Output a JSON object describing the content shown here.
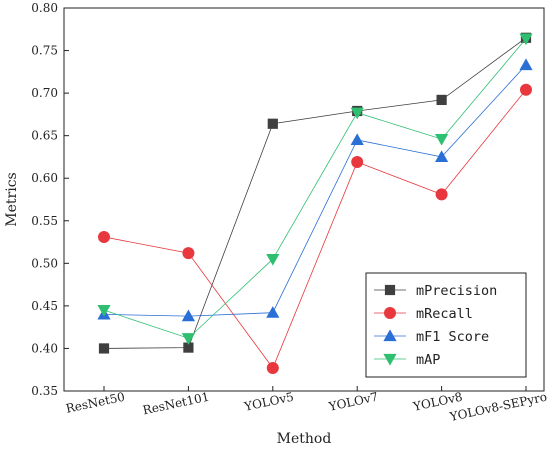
{
  "chart_data": {
    "type": "line",
    "xlabel": "Method",
    "ylabel": "Metrics",
    "categories": [
      "ResNet50",
      "ResNet101",
      "YOLOv5",
      "YOLOv7",
      "YOLOv8",
      "YOLOv8-SEPyro"
    ],
    "ylim": [
      0.35,
      0.8
    ],
    "yticks": [
      "0.35",
      "0.40",
      "0.45",
      "0.50",
      "0.55",
      "0.60",
      "0.65",
      "0.70",
      "0.75",
      "0.80"
    ],
    "grid": false,
    "legend_position": "bottom-right",
    "series": [
      {
        "name": "mPrecision",
        "marker": "square",
        "color": "#3f3f3f",
        "values": [
          0.4,
          0.401,
          0.664,
          0.679,
          0.692,
          0.765
        ]
      },
      {
        "name": "mRecall",
        "marker": "circle",
        "color": "#e8383d",
        "values": [
          0.531,
          0.512,
          0.377,
          0.619,
          0.581,
          0.704
        ]
      },
      {
        "name": "mF1 Score",
        "marker": "triangle-up",
        "color": "#2a6fd6",
        "values": [
          0.44,
          0.438,
          0.442,
          0.645,
          0.625,
          0.733
        ]
      },
      {
        "name": "mAP",
        "marker": "triangle-down",
        "color": "#2fbf71",
        "values": [
          0.445,
          0.412,
          0.505,
          0.677,
          0.646,
          0.764
        ]
      }
    ]
  }
}
